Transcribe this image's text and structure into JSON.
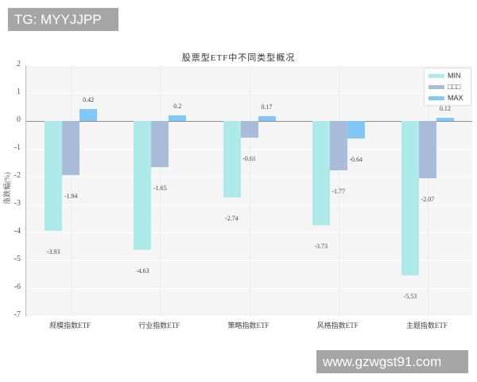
{
  "watermarks": {
    "top": "TG: MYYJJPP",
    "bottom": "www.gzwgst91.com"
  },
  "chart_data": {
    "type": "bar",
    "title": "股票型ETF中不同类型概况",
    "xlabel": "",
    "ylabel": "涨跌幅(%)",
    "ylim": [
      -7,
      2
    ],
    "yticks": [
      "2",
      "1",
      "0",
      "-1",
      "-2",
      "-3",
      "-4",
      "-5",
      "-6",
      "-7"
    ],
    "categories": [
      "规模指数ETF",
      "行业指数ETF",
      "策略指数ETF",
      "风格指数ETF",
      "主题指数ETF"
    ],
    "series": [
      {
        "name": "MIN",
        "color": "#aeeaea",
        "values": [
          -3.93,
          -4.63,
          -2.74,
          -3.73,
          -5.53
        ],
        "labels": [
          "-3.93",
          "-4.63",
          "-2.74",
          "-3.73",
          "-5.53"
        ]
      },
      {
        "name": "□□□",
        "color": "#a9bcd9",
        "values": [
          -1.94,
          -1.65,
          -0.61,
          -1.77,
          -2.07
        ],
        "labels": [
          "-1.94",
          "-1.65",
          "-0.61",
          "-1.77",
          "-2.07"
        ]
      },
      {
        "name": "MAX",
        "color": "#82c8f4",
        "values": [
          0.42,
          0.2,
          0.17,
          -0.64,
          0.12
        ],
        "labels": [
          "0.42",
          "0.2",
          "0.17",
          "-0.64",
          "0.12"
        ]
      }
    ],
    "grid": true,
    "legend_position": "upper right"
  }
}
